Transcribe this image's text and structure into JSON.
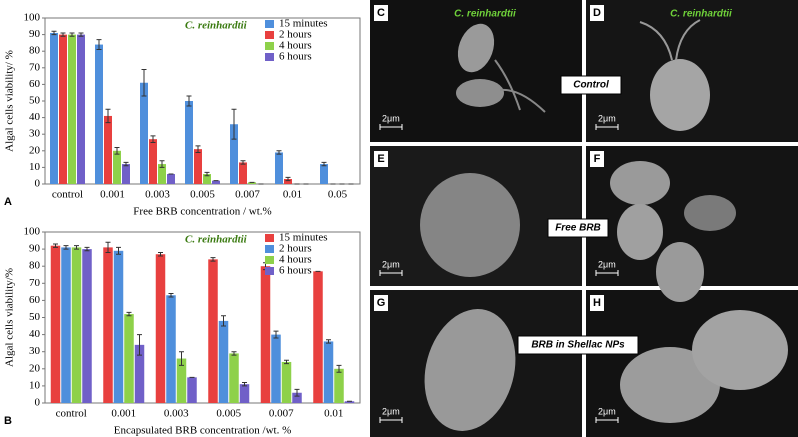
{
  "chart_data": [
    {
      "type": "bar",
      "panel": "A",
      "annotation": "C. reinhardtii",
      "y_label": "Algal cells viability/ %",
      "x_label": "Free BRB concentration / wt.%",
      "categories": [
        "control",
        "0.001",
        "0.003",
        "0.005",
        "0.007",
        "0.01",
        "0.05"
      ],
      "series": [
        {
          "name": "15 minutes",
          "color": "#4f8fdc",
          "values": [
            91,
            84,
            61,
            50,
            36,
            19,
            12
          ],
          "errors": [
            1,
            3,
            8,
            3,
            9,
            1,
            1
          ]
        },
        {
          "name": "2 hours",
          "color": "#e8403f",
          "values": [
            90,
            41,
            27,
            21,
            13,
            3,
            0
          ],
          "errors": [
            1,
            4,
            2,
            2,
            1,
            1,
            0
          ]
        },
        {
          "name": "4 hours",
          "color": "#8ed14a",
          "values": [
            90,
            20,
            12,
            6,
            1,
            0,
            0
          ],
          "errors": [
            1,
            2,
            2,
            1,
            0,
            0,
            0
          ]
        },
        {
          "name": "6 hours",
          "color": "#7060c8",
          "values": [
            90,
            12,
            6,
            2,
            0,
            0,
            0
          ],
          "errors": [
            1,
            1,
            0,
            0,
            0,
            0,
            0
          ]
        }
      ],
      "ylim": [
        0,
        100
      ],
      "yticks": [
        0,
        10,
        20,
        30,
        40,
        50,
        60,
        70,
        80,
        90,
        100
      ],
      "grid": false,
      "legend": "top-right"
    },
    {
      "type": "bar",
      "panel": "B",
      "annotation": "C. reinhardtii",
      "y_label": "Algal cells viability/%",
      "x_label": "Encapsulated BRB concentration /wt. %",
      "categories": [
        "control",
        "0.001",
        "0.003",
        "0.005",
        "0.007",
        "0.01"
      ],
      "series": [
        {
          "name": "15 minutes",
          "color": "#e8403f",
          "values": [
            92,
            91,
            87,
            84,
            80,
            77
          ],
          "errors": [
            1,
            3,
            1,
            1,
            2,
            0
          ]
        },
        {
          "name": "2 hours",
          "color": "#4f8fdc",
          "values": [
            91,
            89,
            63,
            48,
            40,
            36
          ],
          "errors": [
            1,
            2,
            1,
            3,
            2,
            1
          ]
        },
        {
          "name": "4 hours",
          "color": "#8ed14a",
          "values": [
            91,
            52,
            26,
            29,
            24,
            20
          ],
          "errors": [
            1,
            1,
            4,
            1,
            1,
            2
          ]
        },
        {
          "name": "6 hours",
          "color": "#7060c8",
          "values": [
            90,
            34,
            15,
            11,
            6,
            1
          ],
          "errors": [
            1,
            6,
            0,
            1,
            2,
            0
          ]
        }
      ],
      "ylim": [
        0,
        100
      ],
      "yticks": [
        0,
        10,
        20,
        30,
        40,
        50,
        60,
        70,
        80,
        90,
        100
      ],
      "grid": false,
      "legend": "top-right"
    }
  ],
  "micrographs": {
    "panels": [
      {
        "letter": "C",
        "species": "C. reinhardtii",
        "scale": "2μm"
      },
      {
        "letter": "D",
        "species": "C. reinhardtii",
        "scale": "2μm"
      },
      {
        "letter": "E",
        "scale": "2μm"
      },
      {
        "letter": "F",
        "scale": "2μm"
      },
      {
        "letter": "G",
        "scale": "2μm"
      },
      {
        "letter": "H",
        "scale": "2μm"
      }
    ],
    "row_labels": [
      "Control",
      "Free BRB",
      "BRB in Shellac NPs"
    ]
  }
}
